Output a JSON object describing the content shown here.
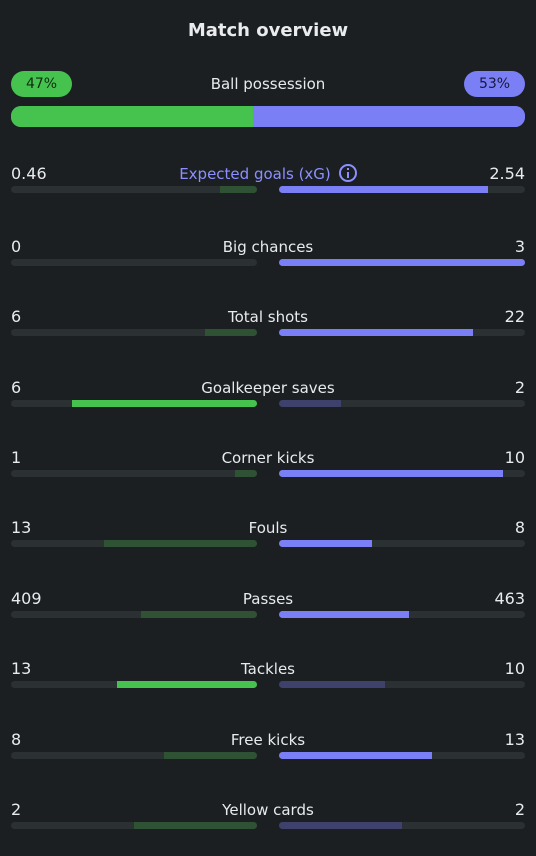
{
  "title": "Match overview",
  "possession": {
    "label": "Ball possession",
    "home_pct_text": "47%",
    "away_pct_text": "53%",
    "home": 47,
    "away": 53
  },
  "colors": {
    "home_win": "#46c34f",
    "home_lose": "#2f5234",
    "away_win": "#7b7ff5",
    "away_lose": "#3d416b",
    "track": "#2b3033",
    "accent": "#8c90ff",
    "background": "#1b1f22"
  },
  "stats": [
    {
      "label": "Expected goals (xG)",
      "home": "0.46",
      "away": "2.54",
      "home_share": 0.15,
      "away_share": 0.85,
      "winner": "away",
      "accent": true,
      "info_icon": "info-icon"
    },
    {
      "label": "Big chances",
      "home": "0",
      "away": "3",
      "home_share": 0.0,
      "away_share": 1.0,
      "winner": "away"
    },
    {
      "label": "Total shots",
      "home": "6",
      "away": "22",
      "home_share": 0.21,
      "away_share": 0.79,
      "winner": "away"
    },
    {
      "label": "Goalkeeper saves",
      "home": "6",
      "away": "2",
      "home_share": 0.75,
      "away_share": 0.25,
      "winner": "home"
    },
    {
      "label": "Corner kicks",
      "home": "1",
      "away": "10",
      "home_share": 0.09,
      "away_share": 0.91,
      "winner": "away"
    },
    {
      "label": "Fouls",
      "home": "13",
      "away": "8",
      "home_share": 0.62,
      "away_share": 0.38,
      "winner": "away"
    },
    {
      "label": "Passes",
      "home": "409",
      "away": "463",
      "home_share": 0.47,
      "away_share": 0.53,
      "winner": "away"
    },
    {
      "label": "Tackles",
      "home": "13",
      "away": "10",
      "home_share": 0.57,
      "away_share": 0.43,
      "winner": "home"
    },
    {
      "label": "Free kicks",
      "home": "8",
      "away": "13",
      "home_share": 0.38,
      "away_share": 0.62,
      "winner": "away"
    },
    {
      "label": "Yellow cards",
      "home": "2",
      "away": "2",
      "home_share": 0.5,
      "away_share": 0.5,
      "winner": "none"
    }
  ]
}
